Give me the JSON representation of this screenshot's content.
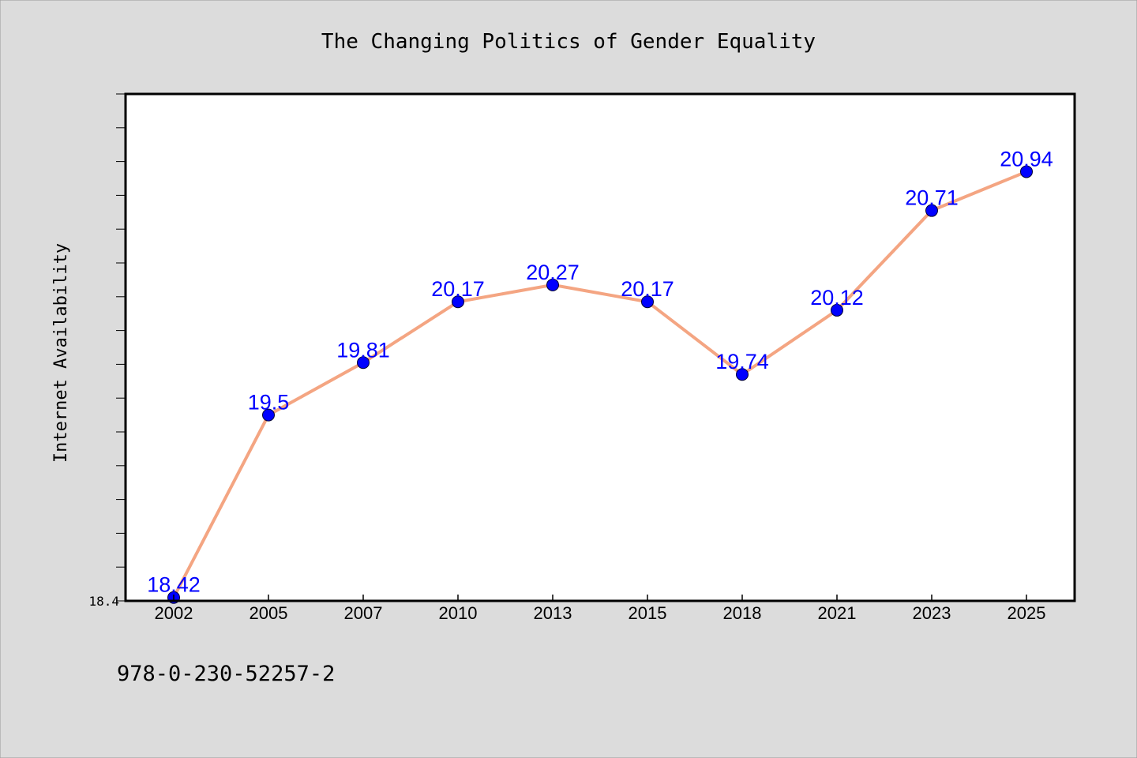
{
  "chart_data": {
    "type": "line",
    "title": "The Changing Politics of Gender Equality",
    "xlabel": "",
    "ylabel": "Internet Availability",
    "categories": [
      "2002",
      "2005",
      "2007",
      "2010",
      "2013",
      "2015",
      "2018",
      "2021",
      "2023",
      "2025"
    ],
    "series": [
      {
        "values": [
          18.42,
          19.5,
          19.81,
          20.17,
          20.27,
          20.17,
          19.74,
          20.12,
          20.71,
          20.94
        ],
        "labels": [
          "18.42",
          "19.5",
          "19.81",
          "20.17",
          "20.27",
          "20.17",
          "19.74",
          "20.12",
          "20.71",
          "20.94"
        ]
      }
    ],
    "ylim": [
      18.4,
      21.4
    ],
    "ytick_label": "18.4",
    "minor_tick_step": 0.2,
    "grid": false,
    "legend": "none",
    "line_color": "#f4a582",
    "marker_color": "#0000ff",
    "label_color": "#0000ff"
  },
  "footer": {
    "isbn": "978-0-230-52257-2"
  },
  "colors": {
    "background": "#dcdcdc",
    "plot_background": "#ffffff"
  }
}
